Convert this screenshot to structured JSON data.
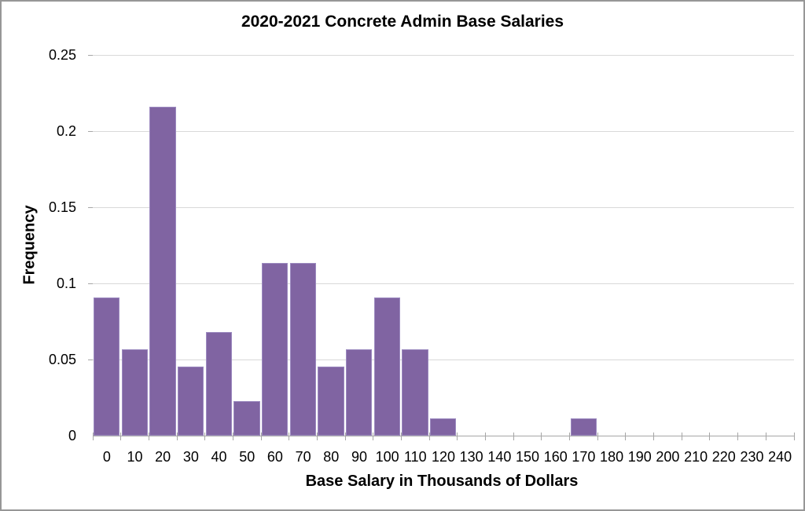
{
  "chart_data": {
    "type": "bar",
    "chart_kind": "histogram",
    "title": "2020-2021 Concrete Admin Base Salaries",
    "xlabel": "Base Salary in Thousands of Dollars",
    "ylabel": "Frequency",
    "categories": [
      "0",
      "10",
      "20",
      "30",
      "40",
      "50",
      "60",
      "70",
      "80",
      "90",
      "100",
      "110",
      "120",
      "130",
      "140",
      "150",
      "160",
      "170",
      "180",
      "190",
      "200",
      "210",
      "220",
      "230",
      "240"
    ],
    "values": [
      0.0909,
      0.0568,
      0.2159,
      0.0455,
      0.0682,
      0.0227,
      0.1136,
      0.1136,
      0.0455,
      0.0568,
      0.0909,
      0.0568,
      0.0114,
      0,
      0,
      0,
      0,
      0.0114,
      0,
      0,
      0,
      0,
      0,
      0,
      0
    ],
    "ylim": [
      0,
      0.25
    ],
    "yticks": [
      {
        "value": 0,
        "label": "0"
      },
      {
        "value": 0.05,
        "label": "0.05"
      },
      {
        "value": 0.1,
        "label": "0.1"
      },
      {
        "value": 0.15,
        "label": "0.15"
      },
      {
        "value": 0.2,
        "label": "0.2"
      },
      {
        "value": 0.25,
        "label": "0.25"
      }
    ],
    "grid": "horizontal",
    "legend": "none",
    "colors": {
      "bar_fill": "#8064A2",
      "bar_edge": "#9C8AC0",
      "gridline": "#D9D9D9",
      "axis_line": "#A6A6A6",
      "text": "#000000",
      "frame": "#979797",
      "background": "#FFFFFF"
    }
  }
}
